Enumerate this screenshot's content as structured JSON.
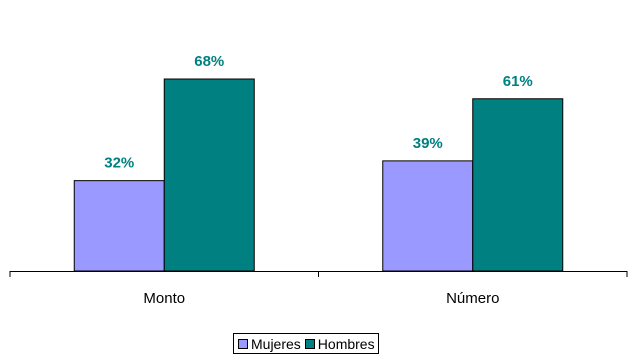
{
  "chart_data": {
    "type": "bar",
    "categories": [
      "Monto",
      "Número"
    ],
    "series": [
      {
        "name": "Mujeres",
        "values": [
          32,
          39
        ],
        "color": "#9999FF",
        "labels": [
          "32%",
          "39%"
        ]
      },
      {
        "name": "Hombres",
        "values": [
          68,
          61
        ],
        "color": "#008080",
        "labels": [
          "68%",
          "61%"
        ]
      }
    ],
    "value_label_color": "#008080",
    "ylim": [
      0,
      100
    ],
    "y_axis_visible": false,
    "grid": false,
    "legend_placement": "bottom-center"
  }
}
